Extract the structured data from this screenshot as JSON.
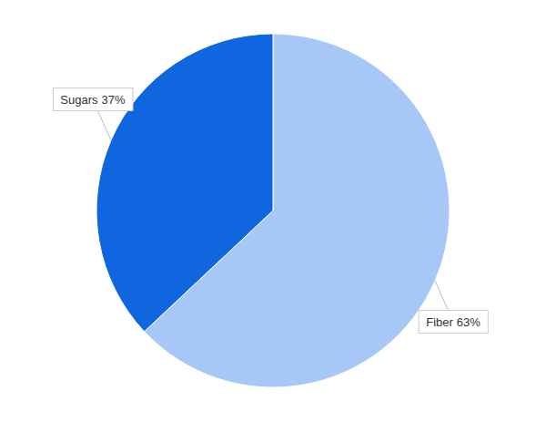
{
  "chart_data": {
    "type": "pie",
    "categories": [
      "Fiber",
      "Sugars"
    ],
    "values": [
      63,
      37
    ],
    "value_labels": [
      "63%",
      "37%"
    ],
    "colors": [
      "#a7c8f6",
      "#1066df"
    ],
    "data_labels": true
  }
}
